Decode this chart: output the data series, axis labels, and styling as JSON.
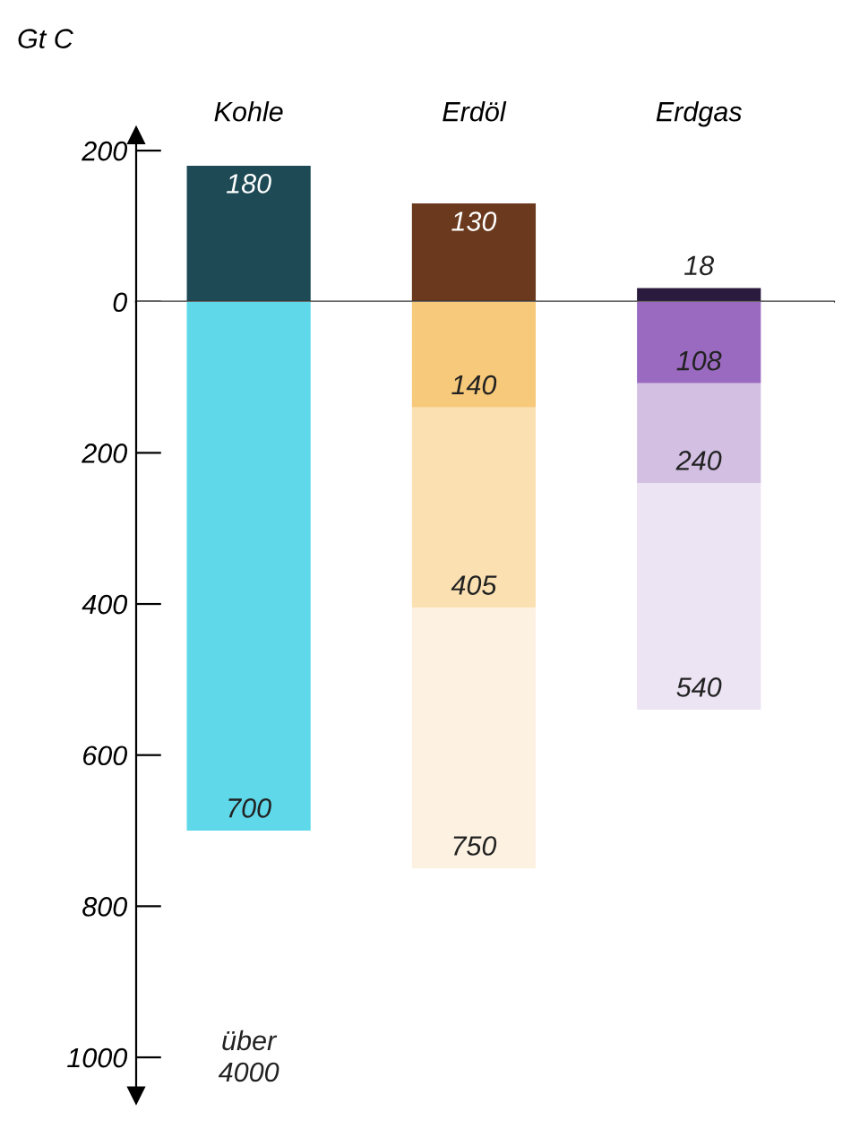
{
  "chart_data": [
    {
      "type": "bar",
      "ylabel": "Gt C",
      "categories": [
        "Kohle",
        "Erdöl",
        "Erdgas"
      ],
      "series": [
        {
          "values": [
            180,
            130,
            18
          ],
          "colors": [
            "#1d4a55",
            "#6b3a1e",
            "#2a1a3e"
          ],
          "value_labels": [
            "180",
            "130",
            "18"
          ]
        }
      ],
      "ylim": [
        0,
        220
      ],
      "yticks": [
        0,
        200
      ],
      "tick_labels": "xy"
    },
    {
      "type": "bar",
      "categories": [
        "Kohle",
        "Erdöl",
        "Erdgas"
      ],
      "stacked": true,
      "series": [
        {
          "values": [
            700,
            140,
            108
          ],
          "colors": [
            "#5fd9ea",
            "#f7c97a",
            "#9a6ac0"
          ]
        },
        {
          "values": [
            null,
            265,
            132
          ],
          "colors": [
            null,
            "#fbe1b2",
            "#d2bfe2"
          ]
        },
        {
          "values": [
            null,
            345,
            300
          ],
          "colors": [
            null,
            "#fdf2e2",
            "#ece3f3"
          ]
        }
      ],
      "annotations": [
        {
          "text": "700",
          "x": "Kohle",
          "y": 700
        },
        {
          "text": "140",
          "x": "Erdöl",
          "y": 140
        },
        {
          "text": "405",
          "x": "Erdöl",
          "y": 405
        },
        {
          "text": "750",
          "x": "Erdöl",
          "y": 750
        },
        {
          "text": "108",
          "x": "Erdgas",
          "y": 108
        },
        {
          "text": "240",
          "x": "Erdgas",
          "y": 240
        },
        {
          "text": "540",
          "x": "Erdgas",
          "y": 540
        },
        "über\n4000"
      ],
      "ylim": [
        1050,
        0
      ],
      "yticks": [
        200,
        400,
        600,
        800,
        1000
      ],
      "tick_labels": "y"
    }
  ]
}
